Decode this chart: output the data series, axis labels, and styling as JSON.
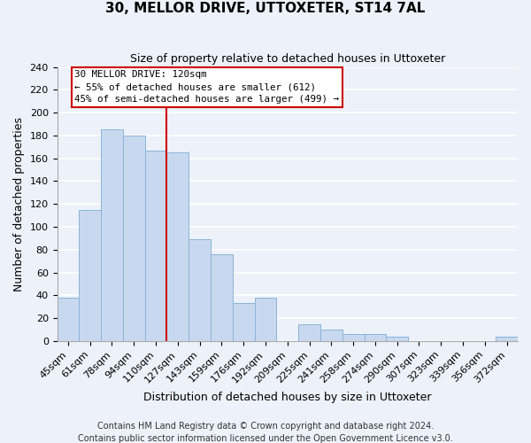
{
  "title": "30, MELLOR DRIVE, UTTOXETER, ST14 7AL",
  "subtitle": "Size of property relative to detached houses in Uttoxeter",
  "xlabel": "Distribution of detached houses by size in Uttoxeter",
  "ylabel": "Number of detached properties",
  "footer_line1": "Contains HM Land Registry data © Crown copyright and database right 2024.",
  "footer_line2": "Contains public sector information licensed under the Open Government Licence v3.0.",
  "bins": [
    "45sqm",
    "61sqm",
    "78sqm",
    "94sqm",
    "110sqm",
    "127sqm",
    "143sqm",
    "159sqm",
    "176sqm",
    "192sqm",
    "209sqm",
    "225sqm",
    "241sqm",
    "258sqm",
    "274sqm",
    "290sqm",
    "307sqm",
    "323sqm",
    "339sqm",
    "356sqm",
    "372sqm"
  ],
  "values": [
    38,
    115,
    185,
    180,
    167,
    165,
    89,
    76,
    33,
    38,
    0,
    15,
    10,
    6,
    6,
    4,
    0,
    0,
    0,
    0,
    4
  ],
  "bar_color": "#c8d9ef",
  "bar_edge_color": "#89b4d9",
  "marker_label_line1": "30 MELLOR DRIVE: 120sqm",
  "marker_label_line2": "← 55% of detached houses are smaller (612)",
  "marker_label_line3": "45% of semi-detached houses are larger (499) →",
  "box_edge_color": "#cc0000",
  "line_color": "#cc0000",
  "ylim": [
    0,
    240
  ],
  "yticks": [
    0,
    20,
    40,
    60,
    80,
    100,
    120,
    140,
    160,
    180,
    200,
    220,
    240
  ],
  "background_color": "#edf1f9",
  "grid_color": "#ffffff",
  "title_fontsize": 11,
  "subtitle_fontsize": 9,
  "axis_label_fontsize": 9,
  "tick_fontsize": 8,
  "footer_fontsize": 7
}
